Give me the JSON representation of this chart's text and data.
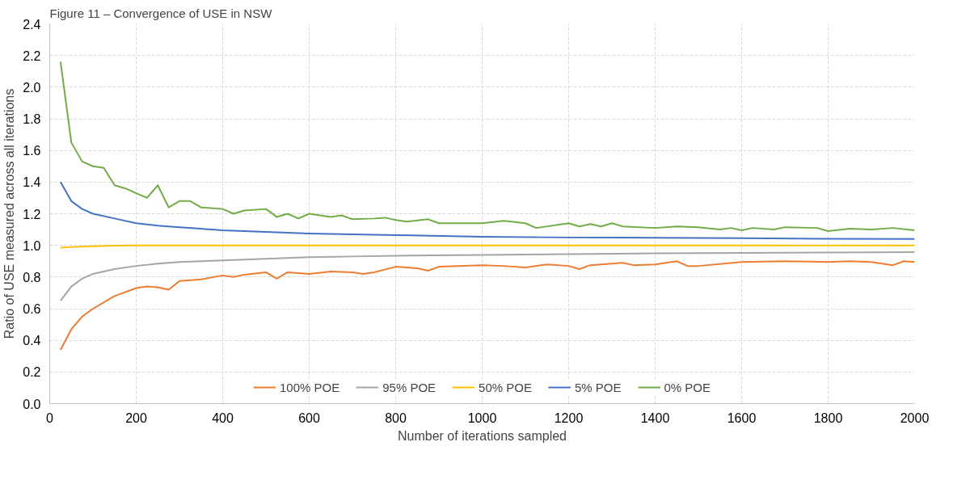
{
  "chart_data": {
    "type": "line",
    "title": "Figure 11 – Convergence of USE in NSW",
    "xlabel": "Number of iterations sampled",
    "ylabel": "Ratio of USE measured across all iterations",
    "xlim": [
      0,
      2000
    ],
    "xticks": [
      0,
      200,
      400,
      600,
      800,
      1000,
      1200,
      1400,
      1600,
      1800,
      2000
    ],
    "ylim": [
      0,
      2.4
    ],
    "yticks": [
      {
        "value": 0,
        "label": "0.0"
      },
      0.2,
      0.4,
      0.6,
      0.8,
      {
        "value": 1,
        "label": "1.0"
      },
      1.2,
      1.4,
      1.6,
      1.8,
      {
        "value": 2,
        "label": "2.0"
      },
      2.2,
      2.4
    ],
    "grid": true,
    "legend": "bottom",
    "line_style": "solid",
    "marker": "none",
    "series": [
      {
        "name": "100% POE",
        "color": "#ed7d31",
        "x": [
          25,
          50,
          75,
          100,
          150,
          200,
          225,
          250,
          275,
          300,
          350,
          400,
          425,
          450,
          500,
          525,
          550,
          600,
          650,
          700,
          725,
          750,
          800,
          850,
          875,
          900,
          1000,
          1050,
          1100,
          1150,
          1200,
          1225,
          1250,
          1300,
          1325,
          1350,
          1400,
          1450,
          1475,
          1500,
          1600,
          1700,
          1800,
          1850,
          1900,
          1950,
          1975,
          2000
        ],
        "values": [
          0.34,
          0.47,
          0.55,
          0.6,
          0.68,
          0.73,
          0.74,
          0.735,
          0.72,
          0.775,
          0.785,
          0.81,
          0.8,
          0.815,
          0.83,
          0.79,
          0.83,
          0.82,
          0.835,
          0.83,
          0.82,
          0.83,
          0.865,
          0.855,
          0.84,
          0.865,
          0.875,
          0.87,
          0.86,
          0.88,
          0.87,
          0.85,
          0.875,
          0.885,
          0.89,
          0.875,
          0.88,
          0.9,
          0.87,
          0.87,
          0.895,
          0.9,
          0.895,
          0.9,
          0.895,
          0.875,
          0.9,
          0.895
        ]
      },
      {
        "name": "95% POE",
        "color": "#a5a5a5",
        "x": [
          25,
          50,
          75,
          100,
          150,
          200,
          250,
          300,
          400,
          500,
          600,
          700,
          800,
          1000,
          1200,
          1400,
          1600,
          1800,
          2000
        ],
        "values": [
          0.65,
          0.74,
          0.79,
          0.82,
          0.85,
          0.87,
          0.885,
          0.895,
          0.905,
          0.915,
          0.925,
          0.93,
          0.935,
          0.94,
          0.945,
          0.95,
          0.952,
          0.955,
          0.958
        ]
      },
      {
        "name": "50% POE",
        "color": "#ffc000",
        "x": [
          25,
          50,
          100,
          150,
          200,
          400,
          600,
          800,
          1000,
          1200,
          1400,
          1600,
          1800,
          2000
        ],
        "values": [
          0.985,
          0.99,
          0.995,
          0.998,
          1.0,
          1.0,
          1.0,
          1.0,
          1.0,
          1.0,
          1.0,
          1.0,
          1.0,
          1.0
        ]
      },
      {
        "name": "5% POE",
        "color": "#4472c4",
        "x": [
          25,
          50,
          75,
          100,
          150,
          200,
          250,
          300,
          350,
          400,
          500,
          600,
          700,
          800,
          1000,
          1200,
          1400,
          1600,
          1800,
          2000
        ],
        "values": [
          1.4,
          1.28,
          1.23,
          1.2,
          1.17,
          1.14,
          1.125,
          1.115,
          1.105,
          1.095,
          1.085,
          1.075,
          1.07,
          1.065,
          1.055,
          1.05,
          1.048,
          1.045,
          1.042,
          1.04
        ]
      },
      {
        "name": "0% POE",
        "color": "#70ad47",
        "x": [
          25,
          50,
          75,
          100,
          125,
          150,
          175,
          200,
          225,
          250,
          275,
          300,
          325,
          350,
          400,
          425,
          450,
          500,
          525,
          550,
          575,
          600,
          650,
          675,
          700,
          750,
          775,
          800,
          825,
          875,
          900,
          1000,
          1050,
          1100,
          1125,
          1200,
          1225,
          1250,
          1275,
          1300,
          1325,
          1400,
          1450,
          1500,
          1550,
          1575,
          1600,
          1625,
          1675,
          1700,
          1775,
          1800,
          1850,
          1900,
          1950,
          2000
        ],
        "values": [
          2.16,
          1.65,
          1.53,
          1.5,
          1.49,
          1.38,
          1.36,
          1.33,
          1.3,
          1.38,
          1.24,
          1.28,
          1.28,
          1.24,
          1.23,
          1.2,
          1.22,
          1.23,
          1.18,
          1.2,
          1.17,
          1.2,
          1.18,
          1.19,
          1.165,
          1.17,
          1.175,
          1.16,
          1.15,
          1.165,
          1.14,
          1.14,
          1.155,
          1.14,
          1.11,
          1.14,
          1.12,
          1.135,
          1.12,
          1.14,
          1.12,
          1.11,
          1.12,
          1.115,
          1.1,
          1.11,
          1.095,
          1.11,
          1.1,
          1.115,
          1.11,
          1.09,
          1.105,
          1.1,
          1.11,
          1.095
        ]
      }
    ]
  }
}
